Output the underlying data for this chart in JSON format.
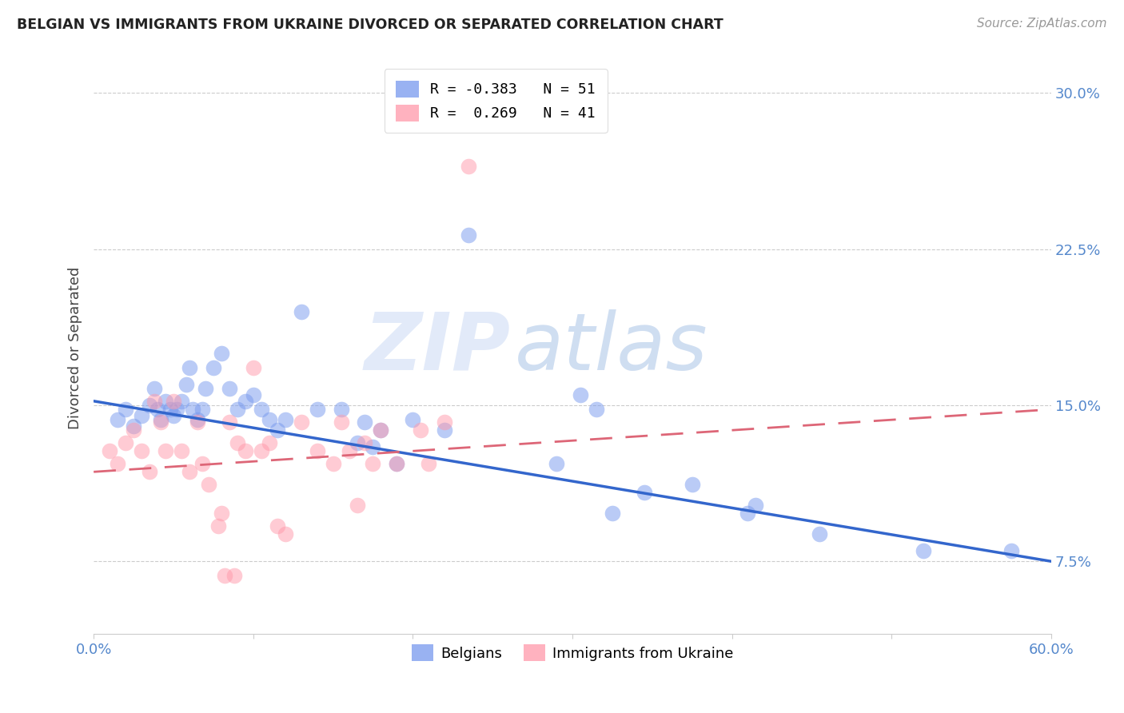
{
  "title": "BELGIAN VS IMMIGRANTS FROM UKRAINE DIVORCED OR SEPARATED CORRELATION CHART",
  "source": "Source: ZipAtlas.com",
  "ylabel": "Divorced or Separated",
  "watermark_zip": "ZIP",
  "watermark_atlas": "atlas",
  "xlim": [
    0.0,
    0.6
  ],
  "ylim": [
    0.04,
    0.315
  ],
  "xtick_positions": [
    0.0,
    0.1,
    0.2,
    0.3,
    0.4,
    0.5,
    0.6
  ],
  "xticklabels": [
    "0.0%",
    "",
    "",
    "",
    "",
    "",
    "60.0%"
  ],
  "ytick_positions": [
    0.075,
    0.15,
    0.225,
    0.3
  ],
  "yticklabels": [
    "7.5%",
    "15.0%",
    "22.5%",
    "30.0%"
  ],
  "legend_entries": [
    {
      "label": "R = -0.383   N = 51",
      "color": "#7799ee"
    },
    {
      "label": "R =  0.269   N = 41",
      "color": "#ff99aa"
    }
  ],
  "legend_belgians": "Belgians",
  "legend_ukraine": "Immigrants from Ukraine",
  "blue_color": "#7799ee",
  "pink_color": "#ff99aa",
  "blue_line_color": "#3366cc",
  "pink_line_color": "#dd6677",
  "grid_color": "#cccccc",
  "title_color": "#222222",
  "axis_color": "#5588cc",
  "blue_scatter": [
    [
      0.015,
      0.143
    ],
    [
      0.02,
      0.148
    ],
    [
      0.025,
      0.14
    ],
    [
      0.03,
      0.145
    ],
    [
      0.035,
      0.15
    ],
    [
      0.038,
      0.158
    ],
    [
      0.04,
      0.148
    ],
    [
      0.042,
      0.143
    ],
    [
      0.045,
      0.152
    ],
    [
      0.048,
      0.148
    ],
    [
      0.05,
      0.145
    ],
    [
      0.052,
      0.148
    ],
    [
      0.055,
      0.152
    ],
    [
      0.058,
      0.16
    ],
    [
      0.06,
      0.168
    ],
    [
      0.062,
      0.148
    ],
    [
      0.065,
      0.143
    ],
    [
      0.068,
      0.148
    ],
    [
      0.07,
      0.158
    ],
    [
      0.075,
      0.168
    ],
    [
      0.08,
      0.175
    ],
    [
      0.085,
      0.158
    ],
    [
      0.09,
      0.148
    ],
    [
      0.095,
      0.152
    ],
    [
      0.1,
      0.155
    ],
    [
      0.105,
      0.148
    ],
    [
      0.11,
      0.143
    ],
    [
      0.115,
      0.138
    ],
    [
      0.12,
      0.143
    ],
    [
      0.13,
      0.195
    ],
    [
      0.14,
      0.148
    ],
    [
      0.155,
      0.148
    ],
    [
      0.165,
      0.132
    ],
    [
      0.17,
      0.142
    ],
    [
      0.175,
      0.13
    ],
    [
      0.18,
      0.138
    ],
    [
      0.19,
      0.122
    ],
    [
      0.2,
      0.143
    ],
    [
      0.22,
      0.138
    ],
    [
      0.235,
      0.232
    ],
    [
      0.29,
      0.122
    ],
    [
      0.305,
      0.155
    ],
    [
      0.315,
      0.148
    ],
    [
      0.325,
      0.098
    ],
    [
      0.345,
      0.108
    ],
    [
      0.375,
      0.112
    ],
    [
      0.41,
      0.098
    ],
    [
      0.415,
      0.102
    ],
    [
      0.455,
      0.088
    ],
    [
      0.52,
      0.08
    ],
    [
      0.575,
      0.08
    ]
  ],
  "pink_scatter": [
    [
      0.01,
      0.128
    ],
    [
      0.015,
      0.122
    ],
    [
      0.02,
      0.132
    ],
    [
      0.025,
      0.138
    ],
    [
      0.03,
      0.128
    ],
    [
      0.035,
      0.118
    ],
    [
      0.038,
      0.152
    ],
    [
      0.042,
      0.142
    ],
    [
      0.045,
      0.128
    ],
    [
      0.05,
      0.152
    ],
    [
      0.055,
      0.128
    ],
    [
      0.06,
      0.118
    ],
    [
      0.065,
      0.142
    ],
    [
      0.068,
      0.122
    ],
    [
      0.072,
      0.112
    ],
    [
      0.078,
      0.092
    ],
    [
      0.08,
      0.098
    ],
    [
      0.082,
      0.068
    ],
    [
      0.085,
      0.142
    ],
    [
      0.088,
      0.068
    ],
    [
      0.09,
      0.132
    ],
    [
      0.095,
      0.128
    ],
    [
      0.1,
      0.168
    ],
    [
      0.105,
      0.128
    ],
    [
      0.11,
      0.132
    ],
    [
      0.115,
      0.092
    ],
    [
      0.12,
      0.088
    ],
    [
      0.13,
      0.142
    ],
    [
      0.14,
      0.128
    ],
    [
      0.15,
      0.122
    ],
    [
      0.155,
      0.142
    ],
    [
      0.16,
      0.128
    ],
    [
      0.165,
      0.102
    ],
    [
      0.17,
      0.132
    ],
    [
      0.175,
      0.122
    ],
    [
      0.18,
      0.138
    ],
    [
      0.19,
      0.122
    ],
    [
      0.205,
      0.138
    ],
    [
      0.21,
      0.122
    ],
    [
      0.22,
      0.142
    ],
    [
      0.235,
      0.265
    ]
  ],
  "blue_line_x": [
    0.0,
    0.6
  ],
  "blue_line_y": [
    0.152,
    0.075
  ],
  "pink_line_x": [
    0.0,
    0.6
  ],
  "pink_line_y": [
    0.118,
    0.148
  ],
  "background_color": "#ffffff"
}
